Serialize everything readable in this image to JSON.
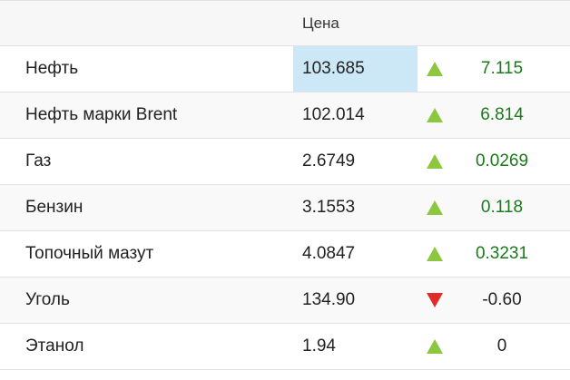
{
  "header": {
    "name_label": "",
    "price_label": "Цена",
    "change_label": ""
  },
  "rows": [
    {
      "name": "Нефть",
      "price": "103.685",
      "direction": "up",
      "change": "7.115",
      "highlight": true
    },
    {
      "name": "Нефть марки Brent",
      "price": "102.014",
      "direction": "up",
      "change": "6.814",
      "highlight": false
    },
    {
      "name": "Газ",
      "price": "2.6749",
      "direction": "up",
      "change": "0.0269",
      "highlight": false
    },
    {
      "name": "Бензин",
      "price": "3.1553",
      "direction": "up",
      "change": "0.118",
      "highlight": false
    },
    {
      "name": "Топочный мазут",
      "price": "4.0847",
      "direction": "up",
      "change": "0.3231",
      "highlight": false
    },
    {
      "name": "Уголь",
      "price": "134.90",
      "direction": "down",
      "change": "-0.60",
      "highlight": false
    },
    {
      "name": "Этанол",
      "price": "1.94",
      "direction": "up",
      "change": "0",
      "highlight": false
    }
  ],
  "colors": {
    "up_arrow": "#8dc63f",
    "down_arrow": "#e02b27",
    "up_change_text": "#1a7a1a",
    "highlight_bg": "#cce8f7"
  },
  "icons": {
    "up": "triangle-up-icon",
    "down": "triangle-down-icon"
  }
}
